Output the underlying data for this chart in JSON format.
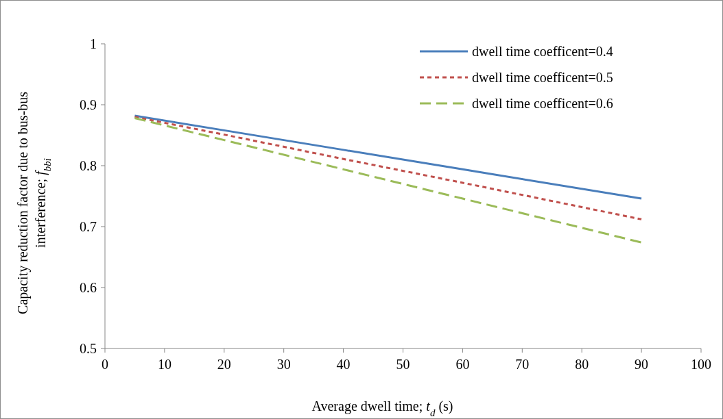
{
  "chart_data": {
    "type": "line",
    "xlabel": "Average dwell time; t$_{d}$ (s)",
    "ylabel": "Capacity reduction factor due to bus-bus interference; f$_{bbi}$",
    "xlim": [
      0,
      100
    ],
    "xticks": [
      0,
      10,
      20,
      30,
      40,
      50,
      60,
      70,
      80,
      90,
      100
    ],
    "ylim": [
      0.5,
      1
    ],
    "yticks": [
      0.5,
      0.6,
      0.7,
      0.8,
      0.9,
      1
    ],
    "grid": false,
    "legend": "top right",
    "marker": "none",
    "series": [
      {
        "name": "dwell time coefficent=0.4",
        "color": "#4a7ebb",
        "line_style": "solid",
        "x": [
          5,
          20,
          40,
          60,
          90
        ],
        "values": [
          0.882,
          0.858,
          0.826,
          0.794,
          0.746
        ]
      },
      {
        "name": "dwell time coefficent=0.5",
        "color": "#c0504d",
        "line_style": "dotted",
        "x": [
          5,
          20,
          40,
          60,
          90
        ],
        "values": [
          0.88,
          0.851,
          0.811,
          0.772,
          0.712
        ]
      },
      {
        "name": "dwell time coefficent=0.6",
        "color": "#9bbb59",
        "line_style": "dashed",
        "x": [
          5,
          20,
          40,
          60,
          90
        ],
        "values": [
          0.878,
          0.842,
          0.794,
          0.746,
          0.674
        ]
      }
    ]
  }
}
